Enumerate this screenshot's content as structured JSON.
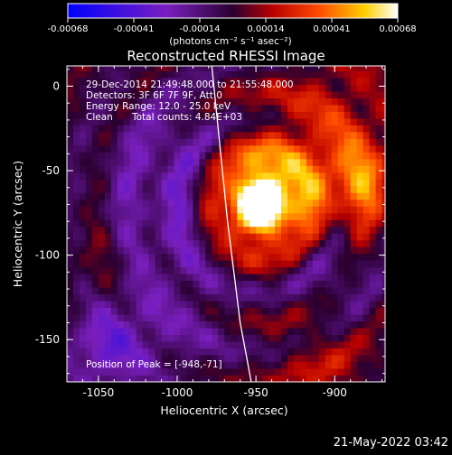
{
  "chart_data": {
    "type": "heatmap",
    "title": "Reconstructed RHESSI Image",
    "xlabel": "Heliocentric X (arcsec)",
    "ylabel": "Heliocentric Y (arcsec)",
    "xlim": [
      -1070,
      -868
    ],
    "ylim": [
      -175,
      12
    ],
    "xticks": [
      {
        "value": -1050,
        "label": "-1050"
      },
      {
        "value": -1000,
        "label": "-1000"
      },
      {
        "value": -950,
        "label": "-950"
      },
      {
        "value": -900,
        "label": "-900"
      }
    ],
    "yticks": [
      {
        "value": 0,
        "label": "0"
      },
      {
        "value": -50,
        "label": "-50"
      },
      {
        "value": -100,
        "label": "-100"
      },
      {
        "value": -150,
        "label": "-150"
      }
    ],
    "overlay": {
      "time": "29-Dec-2014 21:49:48.000 to 21:55:48.000",
      "detectors": "Detectors: 3F 6F 7F 9F, Att 0",
      "energy": "Energy Range: 12.0 - 25.0 keV",
      "algorithm": "Clean",
      "counts": "Total counts: 4.84E+03",
      "peak": "Position of Peak = [-948,-71]"
    },
    "peak": {
      "x": -948,
      "y": -71
    },
    "colorbar": {
      "range": [
        -0.00068,
        0.00068
      ],
      "ticks": [
        "-0.00068",
        "-0.00041",
        "-0.00014",
        "0.00014",
        "0.00041",
        "0.00068"
      ],
      "unit_label": "(photons cm⁻² s⁻¹ asec⁻²)",
      "colormap": "blue-purple-red-yellow-white"
    },
    "limb_line": [
      {
        "x": -978,
        "y": 12
      },
      {
        "x": -968,
        "y": -80
      },
      {
        "x": -960,
        "y": -140
      },
      {
        "x": -953,
        "y": -175
      }
    ],
    "grid": false
  },
  "footer": {
    "timestamp": "21-May-2022 03:42"
  }
}
